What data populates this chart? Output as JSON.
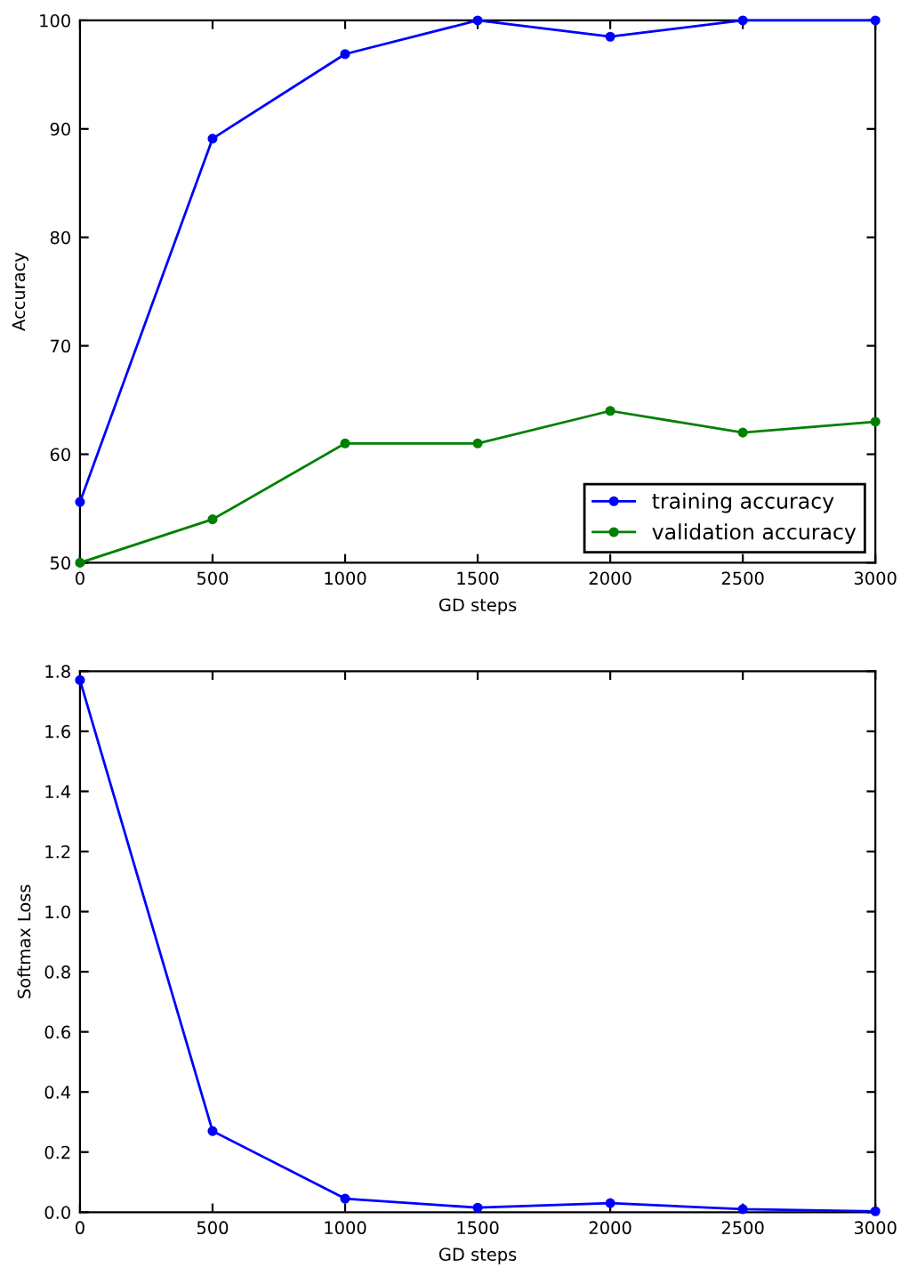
{
  "chart_data": [
    {
      "type": "line",
      "xlabel": "GD steps",
      "ylabel": "Accuracy",
      "x": [
        0,
        500,
        1000,
        1500,
        2000,
        2500,
        3000
      ],
      "series": [
        {
          "name": "training accuracy",
          "color": "#0000ff",
          "values": [
            55.6,
            89.1,
            96.9,
            100,
            98.5,
            100,
            100
          ]
        },
        {
          "name": "validation accuracy",
          "color": "#008000",
          "values": [
            50,
            54,
            61,
            61,
            64,
            62,
            63
          ]
        }
      ],
      "xlim": [
        0,
        3000
      ],
      "xticks": [
        0,
        500,
        1000,
        1500,
        2000,
        2500,
        3000
      ],
      "ylim": [
        50,
        100
      ],
      "yticks": [
        50,
        60,
        70,
        80,
        90,
        100
      ],
      "grid": false,
      "legend": "bottom right",
      "marker": "circle",
      "line_style": "solid"
    },
    {
      "type": "line",
      "xlabel": "GD steps",
      "ylabel": "Softmax Loss",
      "x": [
        0,
        500,
        1000,
        1500,
        2000,
        2500,
        3000
      ],
      "series": [
        {
          "color": "#0000ff",
          "values": [
            1.77,
            0.27,
            0.045,
            0.015,
            0.03,
            0.01,
            0.003
          ]
        }
      ],
      "xlim": [
        0,
        3000
      ],
      "xticks": [
        0,
        500,
        1000,
        1500,
        2000,
        2500,
        3000
      ],
      "ylim": [
        0,
        1.8
      ],
      "yticks": [
        {
          "value": 0,
          "label": "0.0"
        },
        0.2,
        0.4,
        0.6,
        0.8,
        {
          "value": 1,
          "label": "1.0"
        },
        1.2,
        1.4,
        1.6,
        1.8
      ],
      "grid": false,
      "marker": "circle",
      "line_style": "solid"
    }
  ]
}
